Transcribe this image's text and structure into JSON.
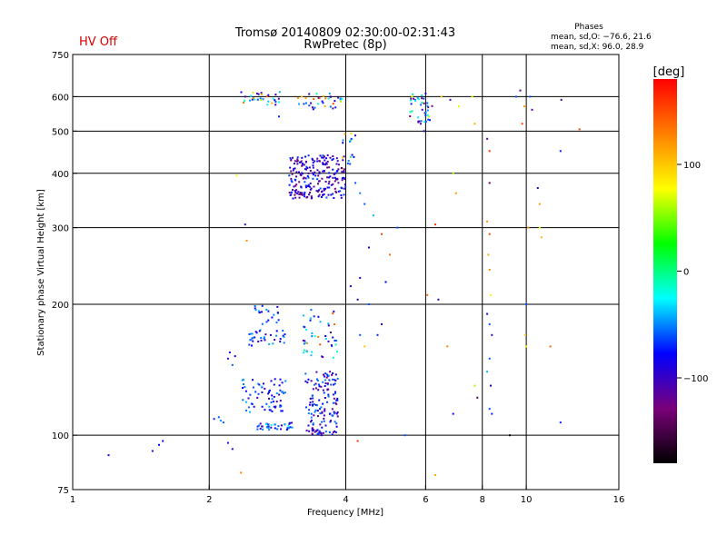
{
  "status": {
    "hv_label": "HV Off",
    "hv_color": "#d40000"
  },
  "chart_data": {
    "type": "scatter",
    "title": "Tromsø 20140809 02:30:00-02:31:43",
    "subtitle": "RwPretec (8p)",
    "xlabel": "Frequency [MHz]",
    "ylabel": "Stationary phase Virtual Height [km]",
    "x_scale": "log",
    "y_scale": "log",
    "xlim": [
      1,
      16
    ],
    "ylim": [
      75,
      750
    ],
    "x_ticks": [
      1,
      2,
      4,
      6,
      8,
      10,
      16
    ],
    "x_tick_labels": [
      "1",
      "2",
      "4",
      "6",
      "8",
      "10",
      "16"
    ],
    "y_ticks": [
      75,
      100,
      200,
      300,
      400,
      500,
      600,
      750
    ],
    "y_tick_labels": [
      "75",
      "100",
      "200",
      "300",
      "400",
      "500",
      "600",
      "750"
    ],
    "grid_x": [
      2,
      4,
      6,
      8,
      10
    ],
    "grid_y": [
      100,
      200,
      300,
      400,
      500,
      600
    ],
    "grid": true,
    "legend": {
      "title": "Phases",
      "lines": [
        "mean, sd,O: −76.6, 21.6",
        "mean, sd,X:  96.0, 28.9"
      ],
      "placement": "top-right"
    },
    "colorbar": {
      "label": "[deg]",
      "range": [
        -180,
        180
      ],
      "ticks": [
        100,
        0,
        -100
      ],
      "tick_labels": [
        "100",
        "0",
        "−100"
      ],
      "colors": [
        "#000000",
        "#7a007a",
        "#0000ff",
        "#00ffff",
        "#00ff00",
        "#ffff00",
        "#ff8000",
        "#ff0000"
      ]
    },
    "series": [
      {
        "description": "point clusters: [freq MHz, height km, phase deg]",
        "points": [
          [
            1.2,
            90,
            -90
          ],
          [
            1.5,
            92,
            -90
          ],
          [
            1.55,
            95,
            -80
          ],
          [
            1.58,
            97,
            -80
          ],
          [
            2.05,
            109,
            -70
          ],
          [
            2.1,
            110,
            -60
          ],
          [
            2.12,
            108,
            -50
          ],
          [
            2.15,
            107,
            -60
          ],
          [
            2.2,
            96,
            -90
          ],
          [
            2.25,
            93,
            -90
          ],
          [
            2.35,
            82,
            130
          ],
          [
            2.2,
            150,
            -100
          ],
          [
            2.22,
            155,
            -90
          ],
          [
            2.25,
            145,
            -60
          ],
          [
            2.28,
            152,
            -80
          ],
          [
            2.4,
            600,
            -100
          ],
          [
            2.5,
            595,
            120
          ],
          [
            2.55,
            610,
            -110
          ],
          [
            2.6,
            590,
            60
          ],
          [
            2.7,
            605,
            -90
          ],
          [
            2.75,
            580,
            110
          ],
          [
            2.8,
            575,
            -100
          ],
          [
            2.85,
            540,
            -70
          ],
          [
            3.2,
            600,
            100
          ],
          [
            3.35,
            580,
            -90
          ],
          [
            3.5,
            595,
            140
          ],
          [
            3.6,
            570,
            110
          ],
          [
            3.7,
            600,
            -100
          ],
          [
            3.9,
            585,
            60
          ],
          [
            2.3,
            395,
            80
          ],
          [
            2.4,
            305,
            -100
          ],
          [
            2.42,
            280,
            120
          ],
          [
            4.2,
            380,
            -60
          ],
          [
            4.3,
            360,
            -50
          ],
          [
            4.4,
            340,
            -60
          ],
          [
            4.6,
            320,
            -40
          ],
          [
            4.8,
            290,
            150
          ],
          [
            4.5,
            270,
            -80
          ],
          [
            4.3,
            230,
            -90
          ],
          [
            4.25,
            205,
            -100
          ],
          [
            4.5,
            200,
            -60
          ],
          [
            4.9,
            225,
            -80
          ],
          [
            5.0,
            260,
            140
          ],
          [
            4.8,
            180,
            -90
          ],
          [
            4.7,
            170,
            -70
          ],
          [
            4.3,
            170,
            -60
          ],
          [
            4.4,
            160,
            100
          ],
          [
            5.2,
            300,
            -60
          ],
          [
            5.6,
            600,
            70
          ],
          [
            5.9,
            560,
            -100
          ],
          [
            5.85,
            520,
            -110
          ],
          [
            6.0,
            610,
            -90
          ],
          [
            6.05,
            580,
            -60
          ],
          [
            5.95,
            500,
            -100
          ],
          [
            6.1,
            540,
            60
          ],
          [
            6.3,
            305,
            160
          ],
          [
            6.4,
            205,
            -100
          ],
          [
            6.5,
            600,
            100
          ],
          [
            6.8,
            590,
            -110
          ],
          [
            6.9,
            400,
            60
          ],
          [
            7.0,
            360,
            120
          ],
          [
            7.1,
            570,
            70
          ],
          [
            6.7,
            160,
            130
          ],
          [
            6.9,
            112,
            -80
          ],
          [
            6.3,
            81,
            110
          ],
          [
            6.05,
            210,
            140
          ],
          [
            7.6,
            600,
            70
          ],
          [
            7.7,
            520,
            110
          ],
          [
            8.2,
            480,
            -110
          ],
          [
            8.3,
            450,
            160
          ],
          [
            8.3,
            380,
            -140
          ],
          [
            8.2,
            310,
            120
          ],
          [
            8.3,
            290,
            150
          ],
          [
            8.25,
            260,
            110
          ],
          [
            8.3,
            240,
            120
          ],
          [
            8.35,
            210,
            80
          ],
          [
            8.2,
            190,
            -90
          ],
          [
            8.3,
            180,
            -60
          ],
          [
            8.4,
            170,
            -100
          ],
          [
            8.3,
            150,
            -60
          ],
          [
            8.2,
            140,
            -40
          ],
          [
            8.35,
            130,
            -80
          ],
          [
            8.4,
            112,
            -70
          ],
          [
            8.3,
            115,
            -60
          ],
          [
            7.8,
            122,
            -150
          ],
          [
            7.7,
            130,
            60
          ],
          [
            9.2,
            100,
            -180
          ],
          [
            9.5,
            600,
            -60
          ],
          [
            9.7,
            620,
            -110
          ],
          [
            9.9,
            570,
            120
          ],
          [
            9.8,
            520,
            150
          ],
          [
            10.1,
            300,
            120
          ],
          [
            10.0,
            200,
            -60
          ],
          [
            9.95,
            170,
            100
          ],
          [
            10.0,
            160,
            80
          ],
          [
            10.2,
            600,
            -60
          ],
          [
            10.3,
            560,
            -110
          ],
          [
            10.6,
            370,
            -100
          ],
          [
            10.7,
            340,
            120
          ],
          [
            10.7,
            300,
            70
          ],
          [
            10.8,
            285,
            110
          ],
          [
            11.3,
            160,
            140
          ],
          [
            11.9,
            450,
            -70
          ],
          [
            11.95,
            590,
            -100
          ],
          [
            11.9,
            107,
            -70
          ],
          [
            13.1,
            505,
            150
          ],
          [
            4.25,
            97,
            160
          ],
          [
            4.1,
            220,
            -90
          ],
          [
            5.4,
            100,
            -60
          ]
        ]
      }
    ],
    "clusters": [
      {
        "fmin": 2.55,
        "fmax": 3.05,
        "hmin": 103,
        "hmax": 107,
        "n": 40,
        "phase": [
          -110,
          -20
        ]
      },
      {
        "fmin": 2.35,
        "fmax": 2.95,
        "hmin": 113,
        "hmax": 135,
        "n": 70,
        "phase": [
          -110,
          -30
        ]
      },
      {
        "fmin": 2.45,
        "fmax": 2.95,
        "hmin": 160,
        "hmax": 175,
        "n": 35,
        "phase": [
          -110,
          -40
        ]
      },
      {
        "fmin": 2.5,
        "fmax": 2.85,
        "hmin": 180,
        "hmax": 200,
        "n": 20,
        "phase": [
          -100,
          -40
        ]
      },
      {
        "fmin": 3.25,
        "fmax": 3.85,
        "hmin": 100,
        "hmax": 140,
        "n": 150,
        "phase": [
          -130,
          -50
        ]
      },
      {
        "fmin": 3.2,
        "fmax": 3.85,
        "hmin": 150,
        "hmax": 195,
        "n": 45,
        "phase": [
          -110,
          160
        ]
      },
      {
        "fmin": 3.0,
        "fmax": 4.0,
        "hmin": 350,
        "hmax": 440,
        "n": 230,
        "phase": [
          -140,
          -60
        ]
      },
      {
        "fmin": 2.35,
        "fmax": 2.9,
        "hmin": 575,
        "hmax": 615,
        "n": 25,
        "phase": [
          -120,
          140
        ]
      },
      {
        "fmin": 3.1,
        "fmax": 4.0,
        "hmin": 560,
        "hmax": 610,
        "n": 30,
        "phase": [
          -120,
          150
        ]
      },
      {
        "fmin": 5.5,
        "fmax": 6.2,
        "hmin": 520,
        "hmax": 610,
        "n": 35,
        "phase": [
          -130,
          80
        ]
      },
      {
        "fmin": 3.9,
        "fmax": 4.2,
        "hmin": 420,
        "hmax": 500,
        "n": 15,
        "phase": [
          -100,
          160
        ]
      }
    ]
  }
}
